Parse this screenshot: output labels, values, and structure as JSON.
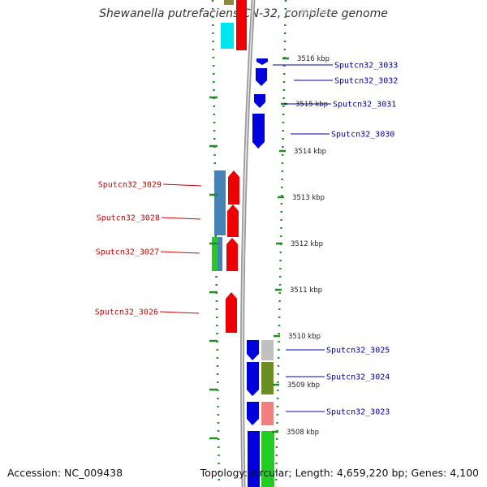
{
  "title": "Shewanella putrefaciens CN-32, complete genome",
  "footer": {
    "accession": "Accession: NC_009438",
    "summary": "Topology: circular; Length: 4,659,220 bp; Genes: 4,100"
  },
  "colors": {
    "forward_label": "#0000aa",
    "reverse_label": "#cc0000",
    "backbone": "#888888",
    "tick": "#228b22"
  },
  "ticks": [
    {
      "label": "3516 kbp"
    },
    {
      "label": "3515 kbp"
    },
    {
      "label": "3514 kbp"
    },
    {
      "label": "3513 kbp"
    },
    {
      "label": "3512 kbp"
    },
    {
      "label": "3511 kbp"
    },
    {
      "label": "3510 kbp"
    },
    {
      "label": "3509 kbp"
    },
    {
      "label": "3508 kbp"
    }
  ],
  "forward_genes": [
    {
      "label": "Sputcn32_3033"
    },
    {
      "label": "Sputcn32_3032"
    },
    {
      "label": "Sputcn32_3031"
    },
    {
      "label": "Sputcn32_3030"
    },
    {
      "label": "Sputcn32_3025"
    },
    {
      "label": "Sputcn32_3024"
    },
    {
      "label": "Sputcn32_3023"
    }
  ],
  "reverse_genes": [
    {
      "label": "Sputcn32_3029"
    },
    {
      "label": "Sputcn32_3028"
    },
    {
      "label": "Sputcn32_3027"
    },
    {
      "label": "Sputcn32_3026"
    }
  ]
}
